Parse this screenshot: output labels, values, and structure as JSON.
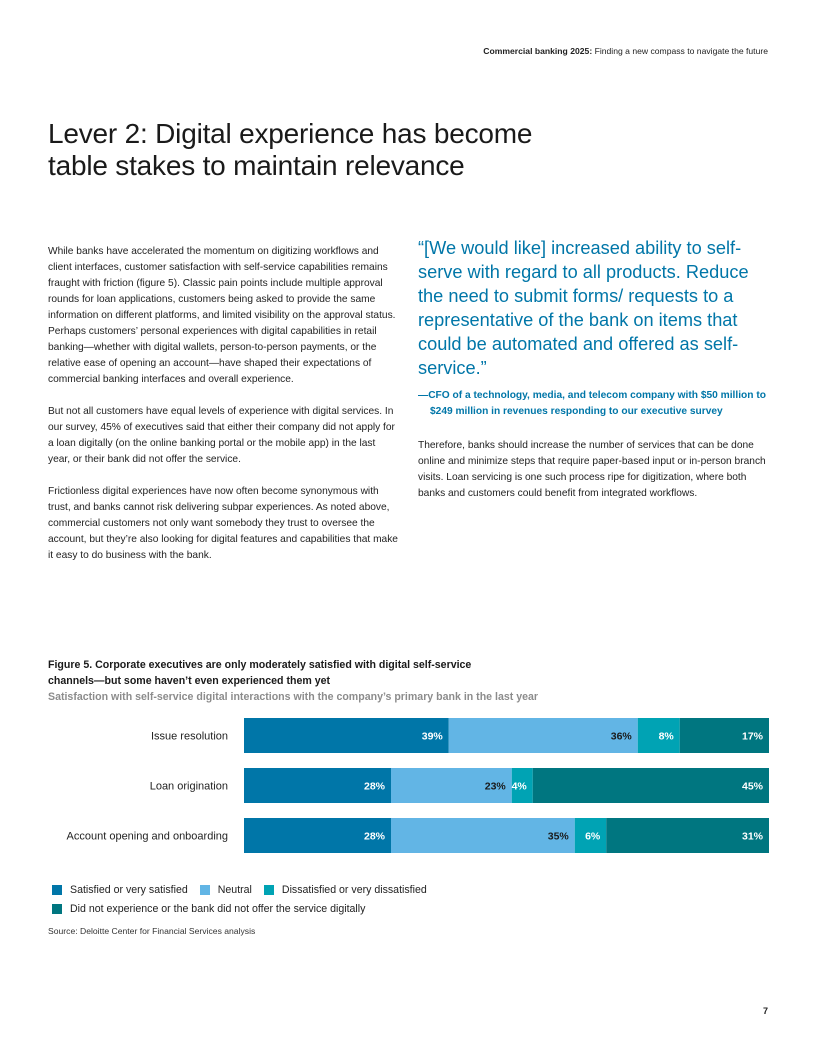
{
  "header": {
    "report": "Commercial banking 2025:",
    "subtitle": "Finding a new compass to navigate the future"
  },
  "title": {
    "line1": "Lever 2: Digital experience has become",
    "line2": "table stakes to maintain relevance"
  },
  "body_left": [
    "While banks have accelerated the momentum on digitizing workflows and client interfaces, customer satisfaction with self-service capabilities remains fraught with friction (figure 5). Classic pain points include multiple approval rounds for loan applications, customers being asked to provide the same information on different platforms, and limited visibility on the approval status. Perhaps customers’ personal experiences with digital capabilities in retail banking—whether with digital wallets, person-to-person payments, or the relative ease of opening an account—have shaped their expectations of commercial banking interfaces and overall experience.",
    "But not all customers have equal levels of experience with digital services. In our survey, 45% of executives said that either their company did not apply for a loan digitally (on the online banking portal or the mobile app) in the last year, or their bank did not offer the service.",
    "Frictionless digital experiences have now often become synonymous with trust, and banks cannot risk delivering subpar experiences. As noted above, commercial customers not only want somebody they trust to oversee the account, but they’re also looking for digital features and capabilities that make it easy to do business with the bank."
  ],
  "quote": {
    "text": "“[We would like] increased ability to self-serve with regard to all products. Reduce the need to submit forms/ requests to a representative of the bank on items that could be automated and offered as self-service.”",
    "attribution": "—CFO of a technology, media, and telecom company with $50 million to $249 million in revenues responding to our executive survey"
  },
  "body_right": "Therefore, banks should increase the number of services that can be done online and minimize steps that require paper-based input or in-person branch visits. Loan servicing is one such process ripe for digitization, where both banks and customers could benefit from integrated workflows.",
  "figure": {
    "title": "Figure 5. Corporate executives are only moderately satisfied with digital self-service channels—but some haven’t even experienced them yet",
    "subtitle": "Satisfaction with self-service digital interactions with the company’s primary bank in the last year"
  },
  "chart_data": {
    "type": "bar",
    "orientation": "horizontal",
    "stacked": true,
    "categories": [
      "Issue resolution",
      "Loan origination",
      "Account opening and onboarding"
    ],
    "series": [
      {
        "name": "Satisfied or very satisfied",
        "color": "#0076a8",
        "values": [
          39,
          28,
          28
        ]
      },
      {
        "name": "Neutral",
        "color": "#62b5e5",
        "values": [
          36,
          23,
          35
        ]
      },
      {
        "name": "Dissatisfied or very dissatisfied",
        "color": "#00a3b4",
        "values": [
          8,
          4,
          6
        ]
      },
      {
        "name": "Did not experience or the bank did not offer the service digitally",
        "color": "#007680",
        "values": [
          17,
          45,
          31
        ]
      }
    ],
    "value_suffix": "%",
    "legend_position": "bottom",
    "grid": false
  },
  "source": "Source: Deloitte Center for Financial Services analysis",
  "page_number": "7"
}
